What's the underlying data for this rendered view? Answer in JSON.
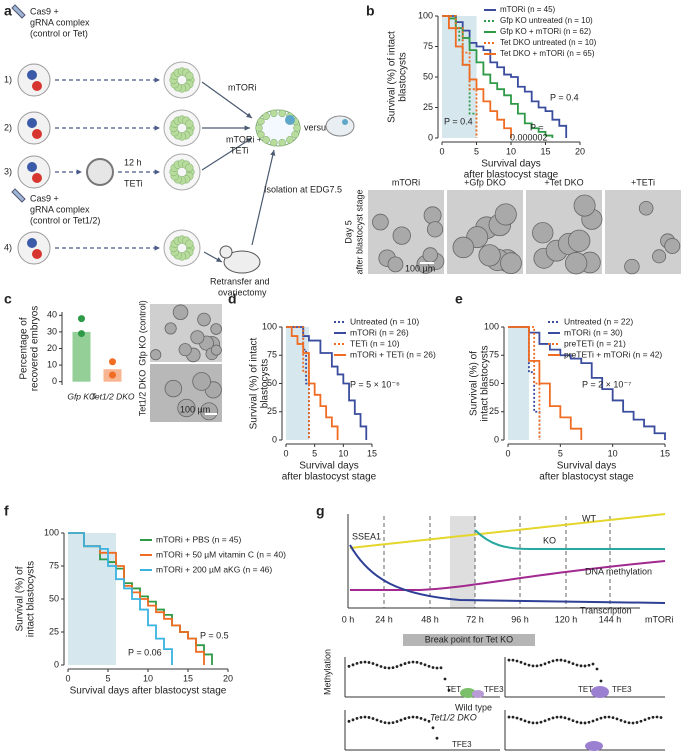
{
  "panel_labels": [
    "a",
    "b",
    "c",
    "d",
    "e",
    "f",
    "g"
  ],
  "panel_a": {
    "top_guide": [
      "Cas9 +",
      "gRNA complex",
      "(control or Tet)"
    ],
    "rows": [
      "1)",
      "2)",
      "3)",
      "4)"
    ],
    "treatment_1": "mTORi",
    "treatment_2": [
      "mTORi +",
      "TETi"
    ],
    "pretreat": [
      "12 h",
      "TETi"
    ],
    "bottom_guide": [
      "Cas9 +",
      "gRNA complex",
      "(control or Tet1/2)"
    ],
    "isolation": "Isolation at EDG7.5",
    "versus": "versus",
    "retransfer": [
      "Retransfer and",
      "ovariectomy"
    ]
  },
  "panel_b_images": {
    "labels": [
      "mTORi",
      "+Gfp DKO",
      "+Tet DKO",
      "+TETi"
    ],
    "side": [
      "Day 5",
      "after blastocyst stage"
    ],
    "scale": "100 µm"
  },
  "panel_c_images": {
    "labels": [
      "Gfp KO (control)",
      "Tet1/2 DKO"
    ],
    "scale": "100 µm"
  },
  "panel_g": {
    "curves": [
      "SSEA1",
      "WT",
      "KO",
      "DNA methylation",
      "Transcription"
    ],
    "time_ticks": [
      "0 h",
      "24 h",
      "48 h",
      "72 h",
      "96 h",
      "120 h",
      "144 h"
    ],
    "time_axis_label": "mTORi",
    "break_point": "Break point for Tet KO",
    "methylation_axis": "Methylation",
    "wild_type": {
      "label": "Wild type",
      "tet_left": "TET",
      "tfe3_left": "TFE3",
      "tet_right": "TET",
      "tfe3_right": "TFE3"
    },
    "dko": {
      "label": "Tet1/2 DKO",
      "tfe3": "TFE3"
    }
  },
  "chart_data": [
    {
      "type": "line",
      "drawstyle": "steps-post",
      "ylabel": [
        "Survival (%) of intact",
        "blastocysts"
      ],
      "xlabel": [
        "Survival days",
        "after blastocyst stage"
      ],
      "xlim": [
        0,
        20
      ],
      "xticks": [
        0,
        5,
        10,
        15,
        20
      ],
      "ylim": [
        0,
        100
      ],
      "yticks": [
        0,
        25,
        50,
        75,
        100
      ],
      "shaded_x": [
        0,
        5
      ],
      "shade_color": "#d6e7ee",
      "series": [
        {
          "name": "mTORi (n = 45)",
          "color": "#3a4c9e",
          "line_style": "solid",
          "x": [
            0,
            2,
            3,
            4,
            5,
            6,
            7,
            8,
            9,
            10,
            11,
            12,
            13,
            14,
            15,
            16,
            17,
            18
          ],
          "values": [
            100,
            95,
            88,
            78,
            75,
            72,
            62,
            58,
            52,
            50,
            42,
            38,
            30,
            25,
            22,
            15,
            10,
            0
          ]
        },
        {
          "name": "Gfp KO untreated (n = 10)",
          "color": "#2e9a47",
          "line_style": "dotted",
          "x": [
            0,
            2,
            2.5,
            3,
            4,
            5
          ],
          "values": [
            100,
            90,
            80,
            60,
            20,
            0
          ]
        },
        {
          "name": "Gfp KO + mTORi (n = 62)",
          "color": "#2e9a47",
          "line_style": "solid",
          "x": [
            0,
            1,
            2,
            3,
            4,
            5,
            6,
            7,
            8,
            9,
            10,
            11,
            12,
            13,
            14,
            15,
            16
          ],
          "values": [
            100,
            98,
            90,
            82,
            72,
            62,
            52,
            45,
            40,
            35,
            28,
            20,
            12,
            8,
            5,
            2,
            0
          ]
        },
        {
          "name": "Tet DKO untreated (n = 10)",
          "color": "#ef6c22",
          "line_style": "dotted",
          "x": [
            0,
            2,
            3,
            4,
            5
          ],
          "values": [
            100,
            90,
            70,
            40,
            0
          ]
        },
        {
          "name": "Tet DKO + mTORi (n = 65)",
          "color": "#ef6c22",
          "line_style": "solid",
          "x": [
            0,
            1,
            2,
            3,
            4,
            5,
            6,
            7,
            8,
            9,
            10
          ],
          "values": [
            100,
            90,
            75,
            60,
            48,
            40,
            30,
            22,
            15,
            8,
            0
          ]
        }
      ],
      "annotations": [
        "P = 0.4",
        "P = 0.4",
        "P =",
        "0.000002"
      ]
    },
    {
      "type": "bar",
      "ylabel": [
        "Percentage of",
        "recovered embryos"
      ],
      "categories": [
        "Gfp KO",
        "Tet1/2 DKO"
      ],
      "values": [
        30,
        7.5
      ],
      "colors": [
        "#93cf97",
        "#f7b592"
      ],
      "points": [
        [
          38,
          29
        ],
        [
          12,
          4
        ]
      ],
      "point_colors": [
        "#2e9a47",
        "#ef6c22"
      ],
      "ylim": [
        -2,
        42
      ],
      "yticks": [
        0,
        10,
        20,
        30,
        40
      ]
    },
    {
      "type": "line",
      "drawstyle": "steps-post",
      "ylabel": [
        "Survival (%) of intact",
        "blastocysts"
      ],
      "xlabel": [
        "Survival days",
        "after blastocyst stage"
      ],
      "xlim": [
        0,
        15
      ],
      "xticks": [
        0,
        5,
        10,
        15
      ],
      "ylim": [
        0,
        100
      ],
      "yticks": [
        0,
        25,
        50,
        75,
        100
      ],
      "shaded_x": [
        0,
        4
      ],
      "shade_color": "#d6e7ee",
      "series": [
        {
          "name": "Untreated (n = 10)",
          "color": "#3a4c9e",
          "line_style": "dotted",
          "x": [
            0,
            3,
            3.5,
            4
          ],
          "values": [
            100,
            80,
            50,
            0
          ]
        },
        {
          "name": "mTORi (n = 26)",
          "color": "#3a4c9e",
          "line_style": "solid",
          "x": [
            0,
            3,
            4,
            6,
            8,
            9,
            10,
            11,
            12,
            13,
            14
          ],
          "values": [
            100,
            92,
            88,
            77,
            65,
            58,
            50,
            35,
            23,
            12,
            0
          ]
        },
        {
          "name": "TETi (n = 10)",
          "color": "#ef6c22",
          "line_style": "dotted",
          "x": [
            0,
            3,
            4
          ],
          "values": [
            100,
            60,
            0
          ]
        },
        {
          "name": "mTORi + TETi (n = 26)",
          "color": "#ef6c22",
          "line_style": "solid",
          "x": [
            0,
            1,
            2,
            3,
            4,
            5,
            6,
            7,
            8,
            9
          ],
          "values": [
            100,
            92,
            85,
            77,
            50,
            40,
            30,
            20,
            12,
            0
          ]
        }
      ],
      "annotations": [
        "P = 5 × 10⁻⁶"
      ]
    },
    {
      "type": "line",
      "drawstyle": "steps-post",
      "ylabel": [
        "Survival (%) of",
        "intact blastocysts"
      ],
      "xlabel": [
        "Survival days",
        "after blastocyst stage"
      ],
      "xlim": [
        0,
        15
      ],
      "xticks": [
        0,
        5,
        10,
        15
      ],
      "ylim": [
        0,
        100
      ],
      "yticks": [
        0,
        25,
        50,
        75,
        100
      ],
      "shaded_x": [
        0,
        2
      ],
      "shade_color": "#d6e7ee",
      "series": [
        {
          "name": "Untreated (n = 22)",
          "color": "#3a4c9e",
          "line_style": "dotted",
          "x": [
            0,
            2,
            2.5,
            3
          ],
          "values": [
            100,
            60,
            25,
            0
          ]
        },
        {
          "name": "mTORi (n = 30)",
          "color": "#3a4c9e",
          "line_style": "solid",
          "x": [
            0,
            2,
            3,
            4,
            5,
            6,
            7,
            8,
            9,
            10,
            11,
            12,
            13,
            14,
            15
          ],
          "values": [
            100,
            95,
            85,
            80,
            75,
            72,
            68,
            55,
            45,
            35,
            25,
            18,
            12,
            6,
            0
          ]
        },
        {
          "name": "preTETi (n = 21)",
          "color": "#ef6c22",
          "line_style": "dotted",
          "x": [
            0,
            2.5,
            3
          ],
          "values": [
            100,
            50,
            0
          ]
        },
        {
          "name": "preTETi + mTORi (n = 42)",
          "color": "#ef6c22",
          "line_style": "solid",
          "x": [
            0,
            2,
            3,
            4,
            5,
            6,
            7
          ],
          "values": [
            100,
            70,
            50,
            30,
            20,
            10,
            0
          ]
        }
      ],
      "annotations": [
        "P = 2 × 10⁻⁷"
      ]
    },
    {
      "type": "line",
      "drawstyle": "steps-post",
      "ylabel": [
        "Survival (%) of",
        "intact blastocysts"
      ],
      "xlabel": [
        "Survival days after blastocyst stage"
      ],
      "xlim": [
        0,
        20
      ],
      "xticks": [
        0,
        5,
        10,
        15,
        20
      ],
      "ylim": [
        0,
        100
      ],
      "yticks": [
        0,
        25,
        50,
        75,
        100
      ],
      "shaded_x": [
        0,
        6
      ],
      "shade_color": "#d6e7ee",
      "series": [
        {
          "name": "mTORi + PBS (n = 45)",
          "color": "#2e9a47",
          "line_style": "solid",
          "x": [
            0,
            2,
            4,
            5,
            6,
            7,
            8,
            9,
            10,
            11,
            12,
            13,
            14,
            15,
            16,
            17,
            18
          ],
          "values": [
            100,
            90,
            80,
            78,
            73,
            62,
            58,
            52,
            48,
            42,
            38,
            30,
            25,
            20,
            15,
            8,
            0
          ]
        },
        {
          "name": "mTORi + 50 µM vitamin C (n = 40)",
          "color": "#ef6c22",
          "line_style": "solid",
          "x": [
            0,
            2,
            4,
            6,
            7,
            8,
            9,
            10,
            11,
            12,
            13,
            14,
            15,
            16,
            17
          ],
          "values": [
            100,
            90,
            85,
            75,
            60,
            55,
            50,
            45,
            40,
            35,
            30,
            25,
            20,
            10,
            0
          ]
        },
        {
          "name": "mTORi + 200 µM aKG (n = 46)",
          "color": "#3ab3e0",
          "line_style": "solid",
          "x": [
            0,
            2,
            4,
            5,
            6,
            7,
            8,
            9,
            10,
            11,
            12,
            13
          ],
          "values": [
            100,
            90,
            88,
            75,
            65,
            58,
            50,
            42,
            30,
            20,
            12,
            0
          ]
        }
      ],
      "annotations": [
        "P = 0.5",
        "P = 0.06"
      ]
    }
  ]
}
